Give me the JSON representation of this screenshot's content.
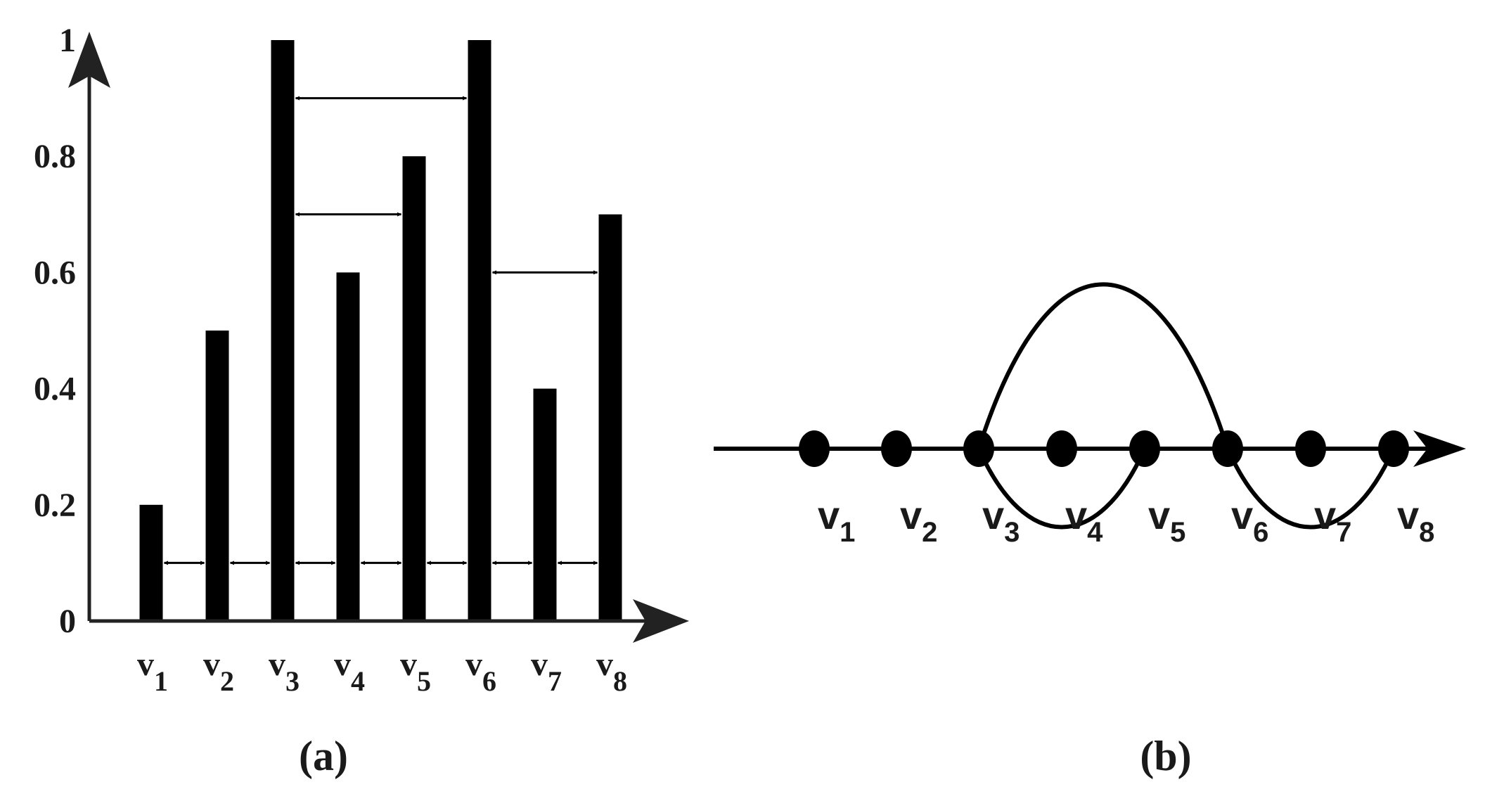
{
  "panel_a": {
    "caption": "(a)",
    "chart_data": {
      "type": "bar",
      "categories": [
        "v1",
        "v2",
        "v3",
        "v4",
        "v5",
        "v6",
        "v7",
        "v8"
      ],
      "values": [
        0.2,
        0.5,
        1.0,
        0.6,
        0.8,
        1.0,
        0.4,
        0.7
      ],
      "ylim": [
        0,
        1
      ],
      "yticks": [
        "0",
        "0.2",
        "0.4",
        "0.6",
        "0.8",
        "1"
      ],
      "xlabel": "",
      "ylabel": "",
      "visibility_arrows": [
        {
          "from": "v1",
          "to": "v2"
        },
        {
          "from": "v2",
          "to": "v3"
        },
        {
          "from": "v3",
          "to": "v4"
        },
        {
          "from": "v4",
          "to": "v5"
        },
        {
          "from": "v5",
          "to": "v6"
        },
        {
          "from": "v6",
          "to": "v7"
        },
        {
          "from": "v7",
          "to": "v8"
        },
        {
          "from": "v3",
          "to": "v6"
        },
        {
          "from": "v3",
          "to": "v5"
        },
        {
          "from": "v6",
          "to": "v8"
        }
      ],
      "colors": {
        "bars": "#000000",
        "axes": "#222222"
      }
    }
  },
  "panel_b": {
    "caption": "(b)",
    "nodes": [
      {
        "id": "v1",
        "base": "v",
        "sub": "1"
      },
      {
        "id": "v2",
        "base": "v",
        "sub": "2"
      },
      {
        "id": "v3",
        "base": "v",
        "sub": "3"
      },
      {
        "id": "v4",
        "base": "v",
        "sub": "4"
      },
      {
        "id": "v5",
        "base": "v",
        "sub": "5"
      },
      {
        "id": "v6",
        "base": "v",
        "sub": "6"
      },
      {
        "id": "v7",
        "base": "v",
        "sub": "7"
      },
      {
        "id": "v8",
        "base": "v",
        "sub": "8"
      }
    ],
    "arcs": [
      {
        "from": "v3",
        "to": "v6",
        "side": "above"
      },
      {
        "from": "v3",
        "to": "v5",
        "side": "below"
      },
      {
        "from": "v6",
        "to": "v8",
        "side": "below"
      }
    ]
  }
}
